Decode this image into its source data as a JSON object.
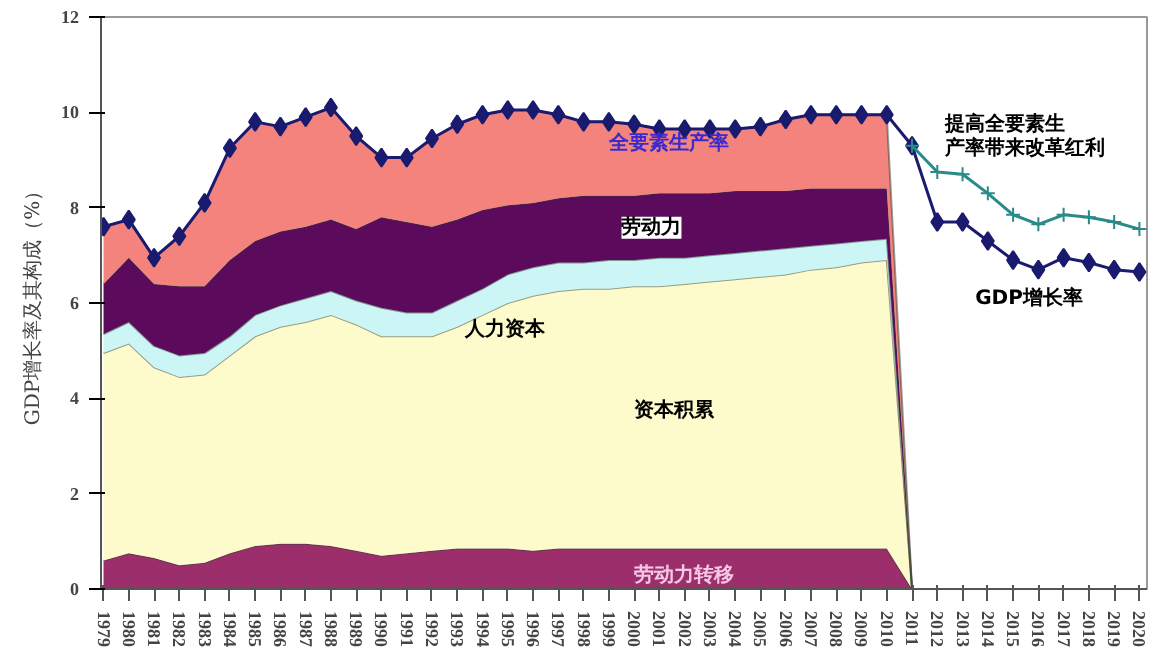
{
  "chart_data": {
    "type": "area",
    "stacked": true,
    "ylabel": "GDP增长率及其构成（%）",
    "categories": [
      "1979",
      "1980",
      "1981",
      "1982",
      "1983",
      "1984",
      "1985",
      "1986",
      "1987",
      "1988",
      "1989",
      "1990",
      "1991",
      "1992",
      "1993",
      "1994",
      "1995",
      "1996",
      "1997",
      "1998",
      "1999",
      "2000",
      "2001",
      "2002",
      "2003",
      "2004",
      "2005",
      "2006",
      "2007",
      "2008",
      "2009",
      "2010",
      "2011",
      "2012",
      "2013",
      "2014",
      "2015",
      "2016",
      "2017",
      "2018",
      "2019",
      "2020"
    ],
    "ylim": [
      0,
      12
    ],
    "yticks": [
      0,
      2,
      4,
      6,
      8,
      10,
      12
    ],
    "grid": false,
    "series": [
      {
        "name": "劳动力转移",
        "color": "#9b2e6b",
        "values": [
          0.6,
          0.75,
          0.65,
          0.5,
          0.55,
          0.75,
          0.9,
          0.95,
          0.95,
          0.9,
          0.8,
          0.7,
          0.75,
          0.8,
          0.85,
          0.85,
          0.85,
          0.8,
          0.85,
          0.85,
          0.85,
          0.85,
          0.85,
          0.85,
          0.85,
          0.85,
          0.85,
          0.85,
          0.85,
          0.85,
          0.85,
          0.85,
          0,
          null,
          null,
          null,
          null,
          null,
          null,
          null,
          null,
          null
        ]
      },
      {
        "name": "资本积累",
        "color": "#fdfbcb",
        "values": [
          4.35,
          4.4,
          4.0,
          3.95,
          3.95,
          4.15,
          4.4,
          4.55,
          4.65,
          4.85,
          4.75,
          4.6,
          4.55,
          4.5,
          4.65,
          4.9,
          5.15,
          5.35,
          5.4,
          5.45,
          5.45,
          5.5,
          5.5,
          5.55,
          5.6,
          5.65,
          5.7,
          5.75,
          5.85,
          5.9,
          6.0,
          6.05,
          0,
          null,
          null,
          null,
          null,
          null,
          null,
          null,
          null,
          null
        ]
      },
      {
        "name": "人力资本",
        "color": "#ccf5f5",
        "values": [
          0.4,
          0.45,
          0.45,
          0.45,
          0.45,
          0.4,
          0.45,
          0.45,
          0.5,
          0.5,
          0.5,
          0.6,
          0.5,
          0.5,
          0.55,
          0.55,
          0.6,
          0.6,
          0.6,
          0.55,
          0.6,
          0.55,
          0.6,
          0.55,
          0.55,
          0.55,
          0.55,
          0.55,
          0.5,
          0.5,
          0.45,
          0.45,
          0,
          null,
          null,
          null,
          null,
          null,
          null,
          null,
          null,
          null
        ]
      },
      {
        "name": "劳动力",
        "color": "#5c0a5c",
        "values": [
          1.05,
          1.35,
          1.3,
          1.45,
          1.4,
          1.6,
          1.55,
          1.55,
          1.5,
          1.5,
          1.5,
          1.9,
          1.9,
          1.8,
          1.7,
          1.65,
          1.45,
          1.35,
          1.35,
          1.4,
          1.35,
          1.35,
          1.35,
          1.35,
          1.3,
          1.3,
          1.25,
          1.2,
          1.2,
          1.15,
          1.1,
          1.05,
          0,
          null,
          null,
          null,
          null,
          null,
          null,
          null,
          null,
          null
        ]
      },
      {
        "name": "全要素生产率",
        "color": "#f4837d",
        "values": [
          1.2,
          0.8,
          0.55,
          1.05,
          1.75,
          2.35,
          2.5,
          2.2,
          2.3,
          2.35,
          1.95,
          1.25,
          1.35,
          1.85,
          2.0,
          2.0,
          2.0,
          1.95,
          1.75,
          1.55,
          1.55,
          1.5,
          1.35,
          1.35,
          1.35,
          1.3,
          1.35,
          1.5,
          1.55,
          1.55,
          1.55,
          1.55,
          0,
          null,
          null,
          null,
          null,
          null,
          null,
          null,
          null,
          null
        ]
      },
      {
        "name": "GDP增长率",
        "type": "line",
        "marker": "diamond",
        "line_style": "solid",
        "color": "#1a1a6e",
        "values": [
          7.6,
          7.75,
          6.95,
          7.4,
          8.1,
          9.25,
          9.8,
          9.7,
          9.9,
          10.1,
          9.5,
          9.05,
          9.05,
          9.45,
          9.75,
          9.95,
          10.05,
          10.05,
          9.95,
          9.8,
          9.8,
          9.75,
          9.65,
          9.65,
          9.65,
          9.65,
          9.7,
          9.85,
          9.95,
          9.95,
          9.95,
          9.95,
          9.3,
          7.7,
          7.7,
          7.3,
          6.9,
          6.7,
          6.95,
          6.85,
          6.7,
          6.65
        ]
      },
      {
        "name": "提高全要素生产率带来改革红利",
        "type": "line",
        "marker": "cross",
        "line_style": "solid",
        "color": "#2a8a8a",
        "values": [
          null,
          null,
          null,
          null,
          null,
          null,
          null,
          null,
          null,
          null,
          null,
          null,
          null,
          null,
          null,
          null,
          null,
          null,
          null,
          null,
          null,
          null,
          null,
          null,
          null,
          null,
          null,
          null,
          null,
          null,
          null,
          null,
          9.3,
          8.75,
          8.7,
          8.3,
          7.85,
          7.65,
          7.85,
          7.8,
          7.7,
          7.55
        ]
      }
    ]
  }
}
